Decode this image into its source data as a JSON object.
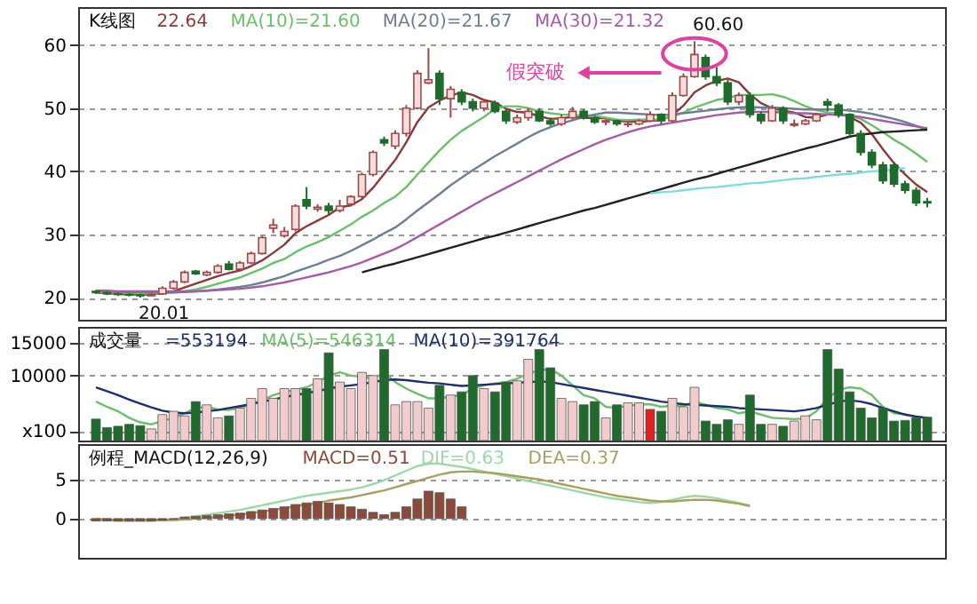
{
  "chart_data": [
    {
      "type": "candlestick",
      "title": "K线图",
      "tick_labels": "y",
      "grid": "y",
      "ylim": [
        16.5,
        66
      ],
      "yticks": [
        20,
        30,
        40,
        50,
        60
      ],
      "categories": [
        null,
        null,
        null,
        null,
        null,
        null,
        null,
        null,
        null,
        null,
        null,
        null,
        null,
        null,
        null,
        null,
        null,
        null,
        null,
        null,
        null,
        null,
        null,
        null,
        null,
        null,
        null,
        null,
        null,
        null,
        null,
        null,
        null,
        null,
        null,
        null,
        null,
        null,
        null,
        null,
        null,
        null,
        null,
        null,
        null,
        null,
        null,
        null,
        null,
        null,
        null,
        null,
        null,
        null,
        null,
        null,
        null,
        null,
        null,
        null,
        null,
        null,
        null,
        null,
        null,
        null,
        null,
        null,
        null,
        null,
        null,
        null,
        null,
        null,
        null,
        null
      ],
      "ohlc": [
        [
          21.0,
          21.2,
          20.6,
          20.8
        ],
        [
          20.8,
          21.0,
          20.4,
          20.6
        ],
        [
          20.6,
          20.8,
          20.3,
          20.5
        ],
        [
          20.5,
          20.7,
          20.2,
          20.4
        ],
        [
          20.4,
          20.6,
          20.01,
          20.3
        ],
        [
          20.3,
          20.8,
          20.2,
          20.5
        ],
        [
          20.6,
          21.8,
          20.5,
          21.5
        ],
        [
          21.5,
          22.8,
          21.3,
          22.5
        ],
        [
          22.5,
          24.3,
          22.3,
          24.0
        ],
        [
          24.2,
          24.4,
          23.6,
          23.8
        ],
        [
          23.6,
          24.3,
          23.4,
          24.0
        ],
        [
          24.0,
          25.3,
          23.8,
          25.0
        ],
        [
          25.3,
          25.8,
          24.3,
          24.5
        ],
        [
          24.5,
          25.8,
          24.3,
          25.5
        ],
        [
          25.5,
          27.3,
          25.3,
          27.0
        ],
        [
          27.0,
          29.8,
          26.8,
          29.5
        ],
        [
          31.0,
          32.5,
          30.2,
          31.5
        ],
        [
          29.8,
          31.2,
          29.5,
          30.5
        ],
        [
          30.8,
          34.8,
          30.5,
          34.5
        ],
        [
          35.5,
          37.5,
          34.0,
          34.5
        ],
        [
          34.0,
          34.8,
          33.6,
          34.3
        ],
        [
          34.5,
          35.0,
          33.2,
          33.8
        ],
        [
          33.8,
          35.5,
          33.5,
          34.5
        ],
        [
          34.8,
          36.2,
          34.5,
          36.0
        ],
        [
          36.0,
          39.8,
          35.8,
          39.5
        ],
        [
          39.5,
          43.3,
          39.2,
          43.0
        ],
        [
          45.0,
          45.5,
          44.0,
          44.5
        ],
        [
          44.0,
          46.5,
          43.5,
          46.0
        ],
        [
          46.0,
          50.5,
          45.5,
          50.0
        ],
        [
          50.0,
          56.0,
          49.8,
          55.5
        ],
        [
          54.0,
          59.5,
          53.8,
          54.5
        ],
        [
          55.5,
          56.0,
          50.5,
          51.5
        ],
        [
          51.5,
          53.5,
          48.5,
          53.0
        ],
        [
          52.5,
          53.0,
          50.5,
          51.0
        ],
        [
          51.0,
          51.5,
          49.5,
          50.0
        ],
        [
          50.0,
          51.5,
          49.5,
          51.0
        ],
        [
          50.8,
          51.2,
          49.2,
          49.5
        ],
        [
          49.5,
          49.8,
          47.5,
          48.0
        ],
        [
          47.8,
          49.0,
          47.5,
          48.5
        ],
        [
          48.5,
          50.0,
          48.0,
          49.5
        ],
        [
          49.5,
          50.0,
          47.8,
          48.0
        ],
        [
          48.0,
          48.5,
          47.2,
          47.5
        ],
        [
          47.5,
          49.0,
          47.2,
          48.5
        ],
        [
          48.5,
          50.2,
          48.2,
          49.5
        ],
        [
          49.5,
          49.8,
          48.2,
          48.5
        ],
        [
          48.5,
          48.8,
          47.5,
          47.8
        ],
        [
          47.8,
          48.3,
          47.3,
          48.0
        ],
        [
          48.0,
          48.2,
          47.2,
          47.5
        ],
        [
          47.4,
          48.0,
          47.0,
          47.5
        ],
        [
          47.5,
          48.3,
          47.3,
          48.0
        ],
        [
          48.0,
          49.5,
          47.8,
          49.0
        ],
        [
          49.0,
          49.2,
          47.5,
          48.0
        ],
        [
          48.0,
          52.5,
          47.8,
          52.0
        ],
        [
          52.0,
          55.5,
          51.8,
          55.0
        ],
        [
          55.0,
          60.6,
          54.8,
          58.5
        ],
        [
          58.0,
          58.5,
          54.5,
          55.0
        ],
        [
          55.0,
          56.5,
          53.5,
          54.0
        ],
        [
          54.0,
          54.5,
          50.5,
          51.0
        ],
        [
          51.0,
          52.5,
          50.5,
          52.0
        ],
        [
          52.0,
          52.5,
          48.5,
          49.0
        ],
        [
          49.0,
          49.5,
          47.5,
          48.0
        ],
        [
          48.0,
          50.5,
          47.8,
          50.0
        ],
        [
          50.0,
          50.3,
          47.5,
          48.0
        ],
        [
          47.3,
          48.2,
          47.0,
          47.5
        ],
        [
          47.5,
          48.3,
          47.3,
          48.0
        ],
        [
          48.0,
          49.3,
          47.8,
          49.0
        ],
        [
          51.0,
          51.5,
          49.5,
          50.5
        ],
        [
          50.5,
          50.8,
          48.5,
          49.0
        ],
        [
          49.0,
          49.2,
          45.5,
          46.0
        ],
        [
          46.0,
          46.5,
          42.5,
          43.0
        ],
        [
          43.0,
          43.5,
          40.5,
          41.0
        ],
        [
          41.0,
          41.5,
          38.0,
          38.5
        ],
        [
          41.0,
          41.5,
          37.5,
          38.0
        ],
        [
          38.0,
          38.5,
          36.5,
          37.0
        ],
        [
          37.0,
          37.5,
          34.5,
          35.0
        ],
        [
          35.2,
          35.8,
          34.3,
          35.0
        ]
      ],
      "series": [
        {
          "type": "line",
          "name": "22.64",
          "color": "#8b3a3a",
          "values": [
            20.8,
            20.7,
            20.6,
            20.5,
            20.5,
            20.5,
            20.7,
            21.0,
            21.6,
            22.2,
            22.8,
            23.4,
            23.9,
            24.3,
            25.0,
            25.9,
            27.1,
            28.4,
            30.2,
            31.3,
            32.2,
            33.1,
            34.3,
            34.6,
            35.6,
            37.4,
            39.6,
            41.8,
            44.6,
            47.8,
            50.1,
            51.2,
            52.0,
            52.5,
            52.1,
            51.3,
            50.9,
            49.9,
            49.4,
            49.3,
            48.7,
            48.3,
            48.4,
            48.6,
            48.5,
            48.4,
            48.4,
            48.0,
            47.9,
            47.8,
            48.0,
            48.1,
            48.9,
            50.4,
            52.5,
            53.6,
            54.3,
            54.7,
            54.1,
            52.2,
            50.8,
            50.0,
            49.6,
            49.3,
            48.6,
            48.5,
            49.0,
            49.2,
            48.6,
            47.7,
            45.9,
            43.5,
            41.3,
            39.5,
            37.9,
            36.7
          ]
        },
        {
          "type": "line",
          "name": "MA(10)=21.60",
          "color": "#6cbf6c",
          "values": [
            20.9,
            20.8,
            20.8,
            20.7,
            20.7,
            20.6,
            20.7,
            20.8,
            21.0,
            21.3,
            21.7,
            22.2,
            22.7,
            23.2,
            23.9,
            24.6,
            25.5,
            26.1,
            27.2,
            28.1,
            28.8,
            29.6,
            30.6,
            31.6,
            32.8,
            33.8,
            35.0,
            36.0,
            37.5,
            39.5,
            41.4,
            43.3,
            45.0,
            46.4,
            47.5,
            48.6,
            49.9,
            50.3,
            50.3,
            50.0,
            49.5,
            49.2,
            49.0,
            48.9,
            48.9,
            48.8,
            48.5,
            48.2,
            48.1,
            48.2,
            48.2,
            48.2,
            48.7,
            49.3,
            50.1,
            50.7,
            51.3,
            51.6,
            52.1,
            52.1,
            52.1,
            52.2,
            51.8,
            51.1,
            50.3,
            49.7,
            49.3,
            49.2,
            48.8,
            48.3,
            47.3,
            46.2,
            45.0,
            44.0,
            42.8,
            41.5
          ]
        },
        {
          "type": "line",
          "name": "MA(20)=21.67",
          "color": "#6f7f93",
          "values": [
            21.0,
            21.0,
            20.9,
            20.9,
            20.9,
            20.8,
            20.8,
            20.8,
            20.9,
            21.0,
            21.1,
            21.3,
            21.5,
            21.7,
            22.0,
            22.4,
            22.9,
            23.4,
            24.1,
            24.7,
            25.3,
            26.0,
            26.6,
            27.4,
            28.3,
            29.2,
            30.2,
            31.1,
            32.4,
            33.8,
            35.1,
            36.4,
            37.8,
            39.0,
            40.2,
            41.3,
            42.4,
            43.4,
            44.4,
            45.4,
            46.3,
            47.0,
            47.6,
            48.1,
            48.6,
            49.0,
            49.3,
            49.3,
            49.2,
            49.1,
            49.0,
            48.9,
            49.0,
            49.2,
            49.4,
            49.6,
            49.8,
            50.0,
            50.1,
            50.2,
            50.1,
            50.1,
            50.0,
            49.9,
            49.8,
            49.8,
            49.8,
            49.8,
            49.6,
            49.4,
            49.1,
            48.7,
            48.3,
            47.8,
            47.2,
            46.6
          ]
        },
        {
          "type": "line",
          "name": "MA(30)=21.32",
          "color": "#a45ca4",
          "values": [
            21.1,
            21.1,
            21.0,
            21.0,
            21.0,
            21.0,
            21.0,
            21.0,
            21.0,
            21.0,
            21.1,
            21.2,
            21.3,
            21.4,
            21.6,
            21.8,
            22.1,
            22.4,
            22.8,
            23.2,
            23.6,
            24.0,
            24.5,
            25.0,
            25.6,
            26.3,
            27.0,
            27.7,
            28.6,
            29.6,
            30.6,
            31.6,
            32.6,
            33.6,
            34.6,
            35.6,
            36.5,
            37.4,
            38.3,
            39.2,
            40.1,
            41.0,
            41.9,
            42.7,
            43.5,
            44.3,
            45.0,
            45.6,
            46.2,
            46.7,
            47.1,
            47.4,
            47.7,
            48.0,
            48.3,
            48.6,
            48.9,
            49.1,
            49.3,
            49.4,
            49.4,
            49.4,
            49.3,
            49.2,
            49.2,
            49.1,
            49.0,
            48.9,
            48.8,
            48.6,
            48.3,
            48.0,
            47.7,
            47.4,
            47.1,
            46.8
          ]
        },
        {
          "type": "line",
          "color": "#222222",
          "values": [
            null,
            null,
            null,
            null,
            null,
            null,
            null,
            null,
            null,
            null,
            null,
            null,
            null,
            null,
            null,
            null,
            null,
            null,
            null,
            null,
            null,
            null,
            null,
            null,
            24.0,
            24.5,
            25.0,
            25.4,
            25.9,
            26.4,
            26.9,
            27.4,
            27.9,
            28.4,
            28.9,
            29.4,
            29.8,
            30.3,
            30.8,
            31.3,
            31.8,
            32.3,
            32.8,
            33.3,
            33.8,
            34.2,
            34.7,
            35.2,
            35.7,
            36.2,
            36.7,
            37.2,
            37.7,
            38.2,
            38.7,
            39.1,
            39.6,
            40.1,
            40.6,
            41.1,
            41.6,
            42.1,
            42.6,
            43.1,
            43.6,
            44.0,
            44.5,
            45.0,
            45.5,
            45.8,
            46.0,
            46.2,
            46.3,
            46.4,
            46.5,
            46.6
          ]
        },
        {
          "type": "line",
          "color": "#7fdcdc",
          "values": [
            null,
            null,
            null,
            null,
            null,
            null,
            null,
            null,
            null,
            null,
            null,
            null,
            null,
            null,
            null,
            null,
            null,
            null,
            null,
            null,
            null,
            null,
            null,
            null,
            null,
            null,
            null,
            null,
            null,
            null,
            null,
            null,
            null,
            null,
            null,
            null,
            null,
            null,
            null,
            null,
            null,
            null,
            null,
            null,
            null,
            null,
            null,
            null,
            null,
            null,
            36.5,
            36.7,
            36.8,
            37.0,
            37.2,
            37.4,
            37.5,
            37.7,
            37.9,
            38.1,
            38.2,
            38.4,
            38.6,
            38.8,
            38.9,
            39.1,
            39.3,
            39.5,
            39.6,
            39.8,
            40.0,
            40.1,
            40.3,
            40.5,
            null,
            null
          ]
        }
      ],
      "annotations": [
        "60.60",
        "20.01",
        "假突破"
      ]
    },
    {
      "type": "bar",
      "title": "成交量",
      "tick_labels": "y",
      "grid": "y",
      "ylim": [
        0,
        17500
      ],
      "yticks": [
        {
          "value": 1500,
          "label": "x100"
        },
        10000,
        15000
      ],
      "annotations": [
        "=553194"
      ],
      "categories": [
        null,
        null,
        null,
        null,
        null,
        null,
        null,
        null,
        null,
        null,
        null,
        null,
        null,
        null,
        null,
        null,
        null,
        null,
        null,
        null,
        null,
        null,
        null,
        null,
        null,
        null,
        null,
        null,
        null,
        null,
        null,
        null,
        null,
        null,
        null,
        null,
        null,
        null,
        null,
        null,
        null,
        null,
        null,
        null,
        null,
        null,
        null,
        null,
        null,
        null,
        null,
        null,
        null,
        null,
        null,
        null,
        null,
        null,
        null,
        null,
        null,
        null,
        null,
        null,
        null,
        null,
        null,
        null,
        null,
        null,
        null,
        null,
        null,
        null,
        null,
        null
      ],
      "series": [
        {
          "type": "bar",
          "colors": [
            "#1e6b2b",
            "#1e6b2b",
            "#1e6b2b",
            "#1e6b2b",
            "#1e6b2b",
            "#f2cccc",
            "#f2cccc",
            "#f2cccc",
            "#f2cccc",
            "#1e6b2b",
            "#f2cccc",
            "#f2cccc",
            "#1e6b2b",
            "#f2cccc",
            "#f2cccc",
            "#f2cccc",
            "#f2cccc",
            "#f2cccc",
            "#f2cccc",
            "#1e6b2b",
            "#f2cccc",
            "#1e6b2b",
            "#f2cccc",
            "#f2cccc",
            "#f2cccc",
            "#f2cccc",
            "#1e6b2b",
            "#f2cccc",
            "#f2cccc",
            "#f2cccc",
            "#f2cccc",
            "#1e6b2b",
            "#f2cccc",
            "#1e6b2b",
            "#1e6b2b",
            "#f2cccc",
            "#1e6b2b",
            "#1e6b2b",
            "#f2cccc",
            "#f2cccc",
            "#1e6b2b",
            "#1e6b2b",
            "#f2cccc",
            "#f2cccc",
            "#1e6b2b",
            "#1e6b2b",
            "#f2cccc",
            "#1e6b2b",
            "#f2cccc",
            "#f2cccc",
            "#e02020",
            "#1e6b2b",
            "#f2cccc",
            "#f2cccc",
            "#f2cccc",
            "#1e6b2b",
            "#1e6b2b",
            "#1e6b2b",
            "#f2cccc",
            "#1e6b2b",
            "#1e6b2b",
            "#f2cccc",
            "#1e6b2b",
            "#f2cccc",
            "#f2cccc",
            "#f2cccc",
            "#1e6b2b",
            "#1e6b2b",
            "#1e6b2b",
            "#1e6b2b",
            "#1e6b2b",
            "#1e6b2b",
            "#1e6b2b",
            "#1e6b2b",
            "#1e6b2b",
            "#1e6b2b"
          ],
          "values": [
            3300,
            2000,
            2200,
            2500,
            2300,
            1800,
            4000,
            4500,
            3800,
            6000,
            5500,
            3500,
            3800,
            5000,
            6500,
            8000,
            6500,
            8000,
            8000,
            8000,
            9500,
            13500,
            9000,
            8000,
            10500,
            10000,
            14000,
            5500,
            6000,
            6000,
            5000,
            8500,
            7000,
            7500,
            10000,
            8000,
            7500,
            9000,
            9200,
            12500,
            14000,
            11200,
            6500,
            6000,
            5500,
            6000,
            3500,
            5500,
            5800,
            5800,
            4800,
            4500,
            6500,
            5200,
            8200,
            3000,
            2500,
            3200,
            2500,
            7000,
            2500,
            2500,
            2200,
            3000,
            3800,
            3200,
            14000,
            11000,
            7500,
            5000,
            3500,
            5000,
            3000,
            3100,
            3500,
            3600
          ]
        },
        {
          "type": "line",
          "name": "MA(5)=546314",
          "color": "#6cbf6c",
          "values": [
            6000,
            5200,
            4500,
            3500,
            2800,
            2500,
            3000,
            3500,
            4200,
            5000,
            5200,
            4800,
            4700,
            5000,
            5600,
            6200,
            7000,
            7500,
            7800,
            8200,
            9000,
            10000,
            10500,
            10000,
            9800,
            9500,
            10500,
            9000,
            8000,
            7200,
            6500,
            6500,
            6800,
            7000,
            8000,
            8500,
            8800,
            9000,
            9500,
            10300,
            10800,
            11000,
            10000,
            8500,
            7000,
            6500,
            5200,
            5000,
            5400,
            5500,
            5600,
            5200,
            5400,
            5300,
            6000,
            5500,
            5000,
            4800,
            4200,
            4500,
            4000,
            3500,
            3400,
            3300,
            3400,
            4500,
            6500,
            7800,
            8200,
            8000,
            7000,
            5200,
            4200,
            4000,
            3600,
            3500
          ]
        },
        {
          "type": "line",
          "name": "MA(10)=391764",
          "color": "#1f2f6b",
          "values": [
            8200,
            7600,
            7000,
            6300,
            5700,
            5100,
            4600,
            4300,
            4200,
            4300,
            4500,
            4700,
            5000,
            5300,
            5600,
            6000,
            6300,
            6700,
            7000,
            7300,
            7600,
            8000,
            8300,
            8500,
            8700,
            9000,
            9300,
            9400,
            9300,
            9100,
            8900,
            8800,
            8600,
            8400,
            8500,
            8600,
            8700,
            8800,
            8900,
            9000,
            9100,
            9000,
            8700,
            8400,
            8100,
            7800,
            7500,
            7200,
            6900,
            6600,
            6300,
            6000,
            5800,
            5600,
            5500,
            5400,
            5300,
            5200,
            5000,
            4900,
            4800,
            4700,
            4600,
            4500,
            4700,
            5000,
            5500,
            6000,
            6200,
            6000,
            5600,
            5000,
            4500,
            4000,
            3700,
            3500
          ]
        }
      ]
    },
    {
      "type": "bar",
      "title": "例程_MACD(12,26,9)",
      "tick_labels": "y",
      "grid": "y",
      "ylim": [
        -5,
        9.5
      ],
      "yticks": [
        0,
        5
      ],
      "categories": [
        null,
        null,
        null,
        null,
        null,
        null,
        null,
        null,
        null,
        null,
        null,
        null,
        null,
        null,
        null,
        null,
        null,
        null,
        null,
        null,
        null,
        null,
        null,
        null,
        null,
        null,
        null,
        null,
        null,
        null,
        null,
        null,
        null,
        null,
        null,
        null,
        null,
        null,
        null,
        null,
        null,
        null,
        null,
        null,
        null,
        null,
        null,
        null,
        null,
        null,
        null,
        null,
        null,
        null,
        null,
        null,
        null,
        null,
        null,
        null,
        null,
        null,
        null,
        null,
        null,
        null,
        null,
        null,
        null,
        null,
        null,
        null,
        null,
        null,
        null,
        null
      ],
      "series": [
        {
          "type": "bar",
          "name": "MACD=0.51",
          "color": "#8b4a3a",
          "values": [
            -0.3,
            -0.3,
            -0.3,
            -0.3,
            -0.3,
            -0.3,
            -0.2,
            -0.1,
            0.2,
            0.3,
            0.4,
            0.5,
            0.6,
            0.7,
            0.9,
            1.1,
            1.3,
            1.5,
            1.8,
            2.0,
            2.2,
            2.0,
            1.8,
            1.5,
            1.2,
            0.8,
            0.5,
            0.8,
            1.5,
            2.5,
            3.5,
            3.3,
            2.5,
            1.5,
            null,
            null,
            null,
            null,
            null,
            null,
            null,
            null,
            null,
            null,
            null,
            null,
            null,
            null,
            null,
            null,
            null,
            null,
            null,
            null,
            null,
            null,
            null,
            null,
            null,
            null,
            null,
            null,
            null,
            null,
            null,
            null,
            null,
            null,
            null,
            null,
            null,
            null,
            null,
            null,
            null,
            null
          ]
        },
        {
          "type": "line",
          "name": "DIF=0.63",
          "color": "#9fd8a8",
          "values": [
            -0.2,
            -0.2,
            -0.3,
            -0.3,
            -0.3,
            -0.3,
            -0.2,
            -0.1,
            0.1,
            0.3,
            0.5,
            0.7,
            0.9,
            1.1,
            1.4,
            1.7,
            2.0,
            2.3,
            2.6,
            2.9,
            3.1,
            3.3,
            3.5,
            3.7,
            4.0,
            4.4,
            4.9,
            5.5,
            6.1,
            6.7,
            7.0,
            7.0,
            6.8,
            6.6,
            6.3,
            6.0,
            5.7,
            5.4,
            5.1,
            4.8,
            4.5,
            4.2,
            3.9,
            3.6,
            3.3,
            3.0,
            2.7,
            2.5,
            2.3,
            2.1,
            2.0,
            2.1,
            2.4,
            2.7,
            2.9,
            2.8,
            2.6,
            2.3,
            2.0,
            1.7,
            null,
            null,
            null,
            null,
            null,
            null,
            null,
            null,
            null,
            null,
            null,
            null,
            null,
            null,
            null,
            null
          ]
        },
        {
          "type": "line",
          "name": "DEA=0.37",
          "color": "#a8a060",
          "values": [
            -0.1,
            -0.1,
            -0.2,
            -0.2,
            -0.2,
            -0.2,
            -0.2,
            -0.2,
            -0.1,
            0,
            0.1,
            0.2,
            0.4,
            0.5,
            0.7,
            0.9,
            1.1,
            1.3,
            1.6,
            1.8,
            2.0,
            2.3,
            2.5,
            2.7,
            3.0,
            3.3,
            3.6,
            4.0,
            4.4,
            4.8,
            5.2,
            5.6,
            5.9,
            6.0,
            6.0,
            5.9,
            5.8,
            5.6,
            5.4,
            5.2,
            5.0,
            4.7,
            4.4,
            4.1,
            3.8,
            3.5,
            3.2,
            2.9,
            2.7,
            2.5,
            2.3,
            2.2,
            2.2,
            2.3,
            2.4,
            2.4,
            2.3,
            2.1,
            1.9,
            1.6,
            null,
            null,
            null,
            null,
            null,
            null,
            null,
            null,
            null,
            null,
            null,
            null,
            null,
            null,
            null,
            null
          ]
        }
      ]
    }
  ]
}
